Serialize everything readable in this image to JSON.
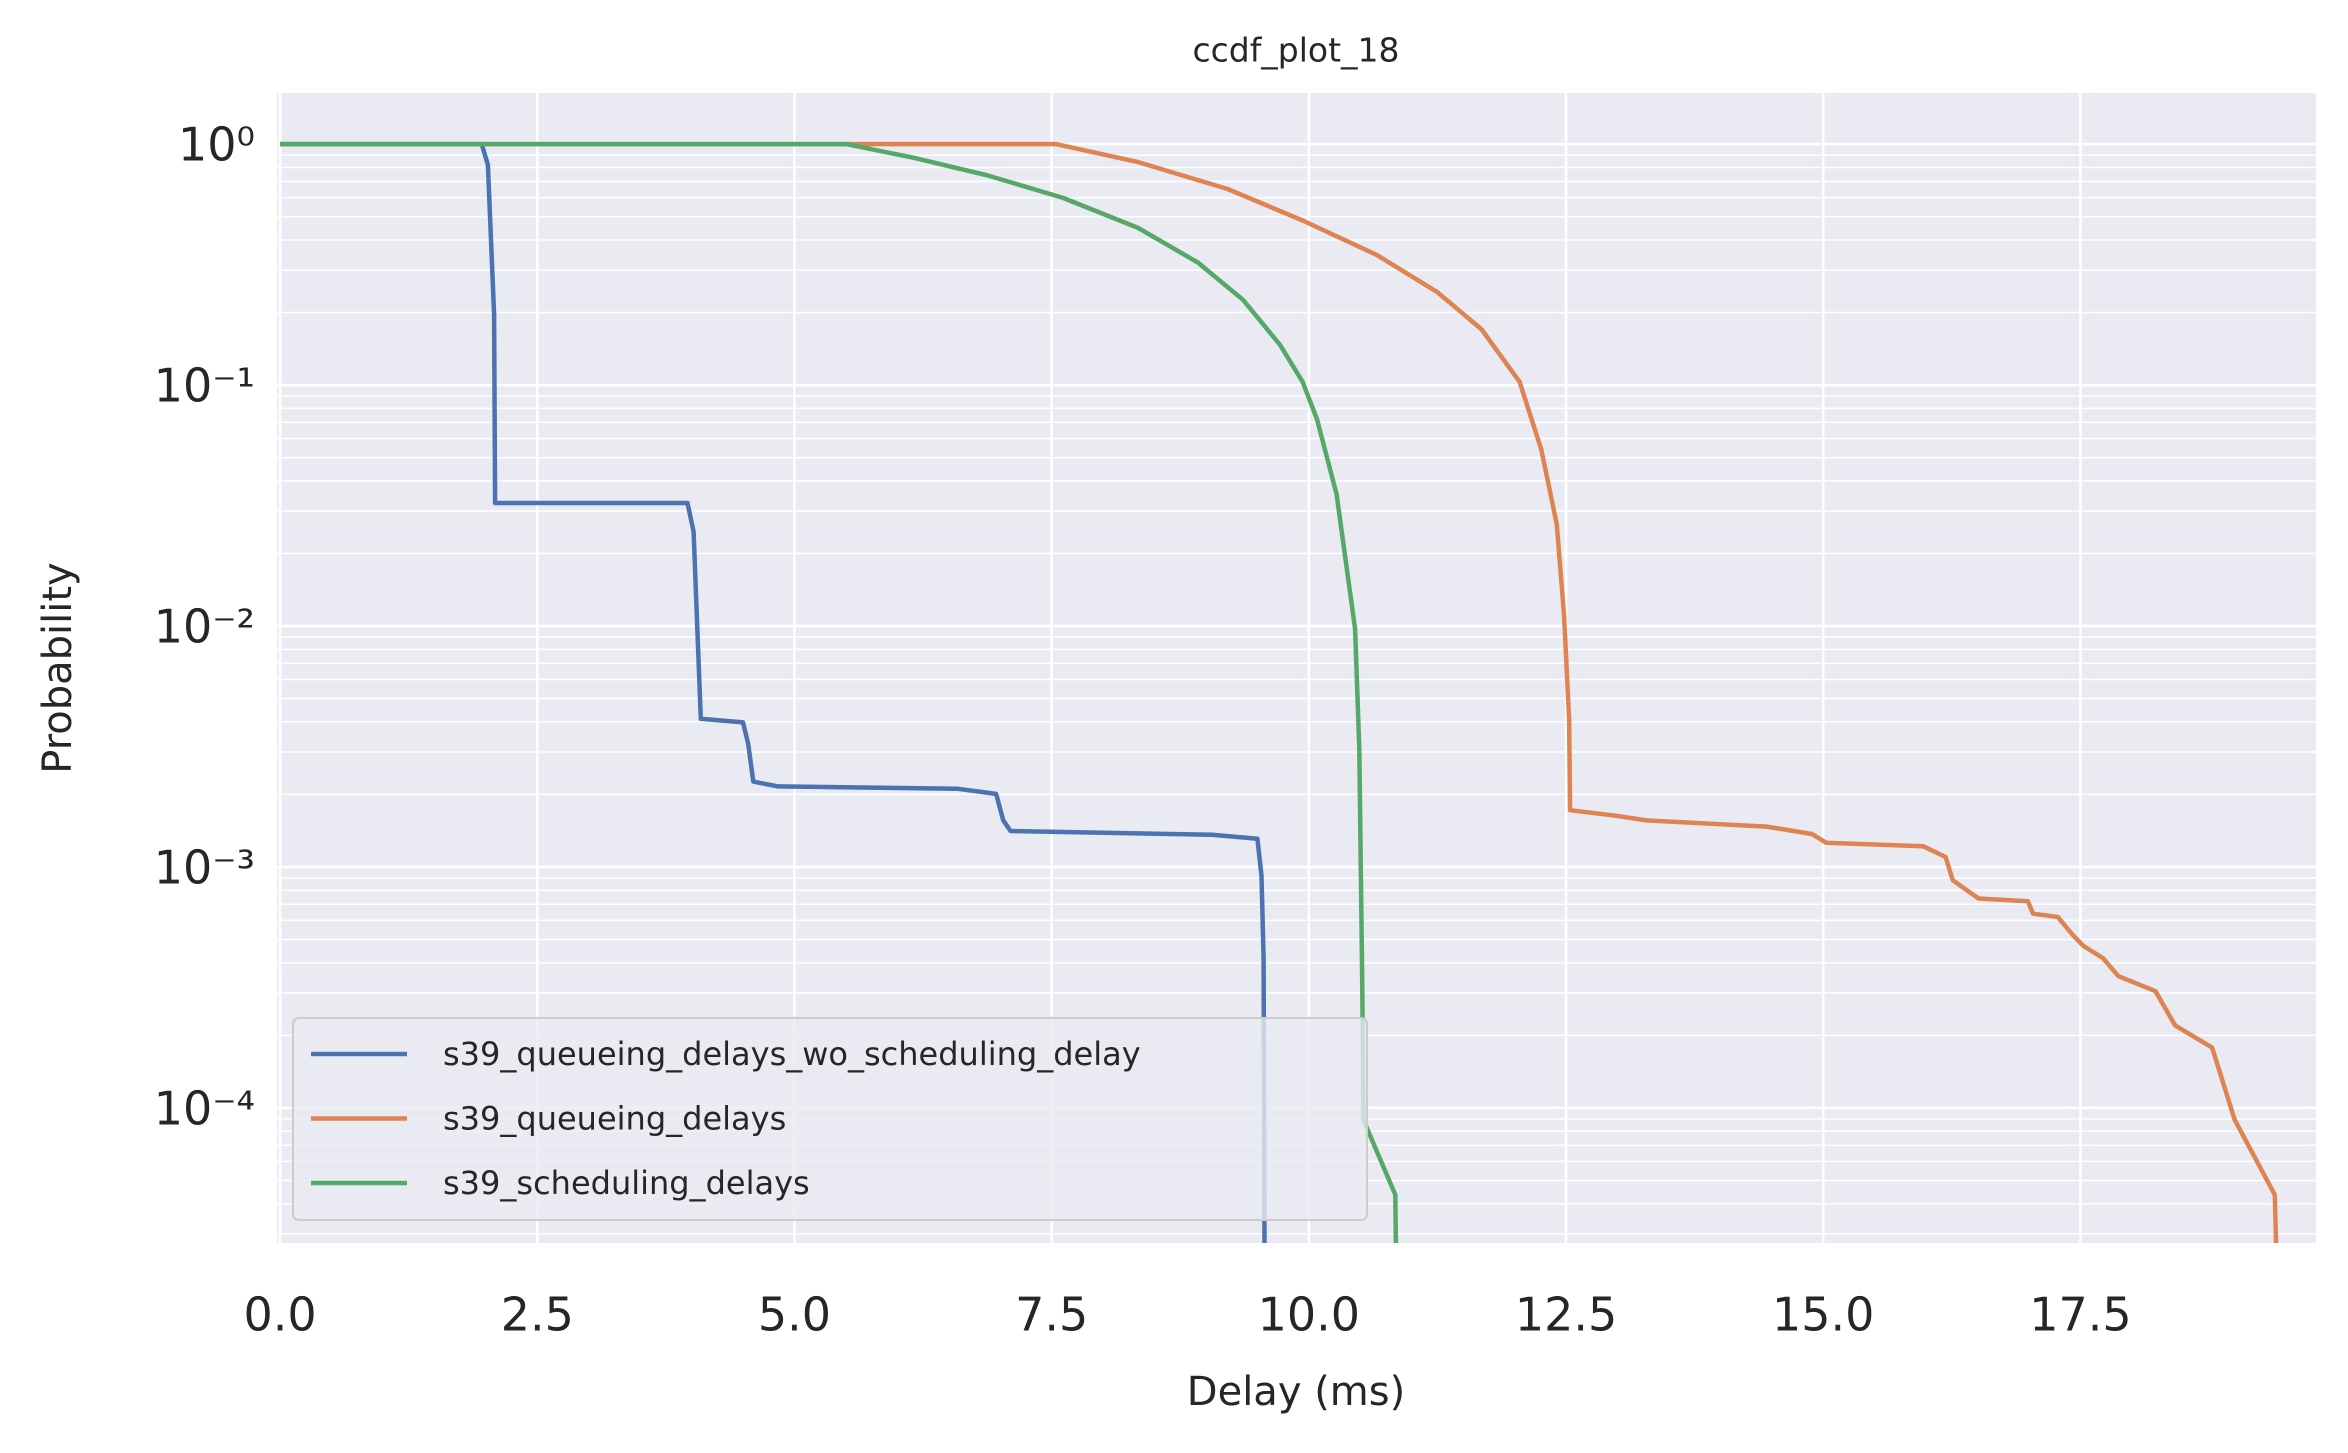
{
  "chart_data": {
    "type": "line",
    "title": "ccdf_plot_18",
    "x_label": "Delay (ms)",
    "y_label": "Probability",
    "log_y": true,
    "grid": true,
    "legend": "lower left",
    "background": "#eaeaf2",
    "xlim": [
      -0.03,
      19.79
    ],
    "ylim": [
      2.75e-05,
      1.63
    ],
    "xticks": [
      {
        "value": 0,
        "label": "0.0"
      },
      2.5,
      {
        "value": 5,
        "label": "5.0"
      },
      7.5,
      {
        "value": 10,
        "label": "10.0"
      },
      12.5,
      {
        "value": 15,
        "label": "15.0"
      },
      17.5
    ],
    "yticks": [
      {
        "value": 1,
        "label": "10⁰"
      },
      {
        "value": 0.1,
        "label": "10⁻¹"
      },
      {
        "value": 0.01,
        "label": "10⁻²"
      },
      {
        "value": 0.001,
        "label": "10⁻³"
      },
      {
        "value": 0.0001,
        "label": "10⁻⁴"
      }
    ],
    "yminor_ticks": [
      3e-05,
      4e-05,
      5e-05,
      6e-05,
      7e-05,
      8e-05,
      9e-05,
      0.0002,
      0.0003,
      0.0004,
      0.0005,
      0.0006,
      0.0007,
      0.0008,
      0.0009,
      0.002,
      0.003,
      0.004,
      0.005,
      0.006,
      0.007,
      0.008,
      0.009,
      0.02,
      0.03,
      0.04,
      0.05,
      0.06,
      0.07,
      0.08,
      0.09,
      0.2,
      0.3,
      0.4,
      0.5,
      0.6,
      0.7,
      0.8,
      0.9
    ],
    "series": [
      {
        "name": "s39_queueing_delays_wo_scheduling_delay",
        "color": "#4c72b0",
        "x": [
          0,
          1.96,
          2.02,
          2.08,
          2.09,
          3.96,
          4.02,
          4.09,
          4.5,
          4.55,
          4.6,
          4.84,
          6.59,
          6.96,
          7.03,
          7.1,
          9.06,
          9.5,
          9.54,
          9.56,
          9.57
        ],
        "values": [
          1,
          1,
          0.82,
          0.196,
          0.0324,
          0.0324,
          0.0246,
          0.00412,
          0.00398,
          0.00324,
          0.00226,
          0.00216,
          0.00211,
          0.00201,
          0.00156,
          0.00141,
          0.00136,
          0.00131,
          0.000918,
          0.000418,
          2e-05
        ]
      },
      {
        "name": "s39_queueing_delays",
        "color": "#dd8452",
        "x": [
          0,
          7.54,
          8.34,
          9.21,
          9.94,
          10.66,
          11.25,
          11.68,
          12.05,
          12.26,
          12.41,
          12.48,
          12.53,
          12.54,
          12.99,
          13.28,
          14.45,
          14.89,
          15.03,
          15.97,
          16.19,
          16.26,
          16.51,
          16.99,
          17.04,
          17.28,
          17.43,
          17.53,
          17.72,
          17.87,
          18.23,
          18.42,
          18.78,
          19.0,
          19.39,
          19.41
        ],
        "values": [
          1,
          1,
          0.842,
          0.651,
          0.482,
          0.347,
          0.243,
          0.17,
          0.103,
          0.054,
          0.0264,
          0.0112,
          0.00412,
          0.00172,
          0.00163,
          0.00156,
          0.00147,
          0.00137,
          0.00126,
          0.00122,
          0.0011,
          0.00088,
          0.00074,
          0.00072,
          0.00064,
          0.00062,
          0.00052,
          0.00047,
          0.000418,
          0.000352,
          0.000305,
          0.00022,
          0.000178,
          8.93e-05,
          4.36e-05,
          2e-05
        ]
      },
      {
        "name": "s39_scheduling_delays",
        "color": "#55a868",
        "x": [
          0,
          5.5,
          6.15,
          6.88,
          7.61,
          8.34,
          8.92,
          9.36,
          9.72,
          9.94,
          10.08,
          10.27,
          10.37,
          10.45,
          10.49,
          10.52,
          10.53,
          10.84,
          10.85
        ],
        "values": [
          1,
          1,
          0.879,
          0.741,
          0.598,
          0.449,
          0.323,
          0.226,
          0.147,
          0.103,
          0.0719,
          0.0352,
          0.0172,
          0.00972,
          0.0031,
          0.000314,
          8.93e-05,
          4.36e-05,
          2e-05
        ]
      }
    ]
  }
}
